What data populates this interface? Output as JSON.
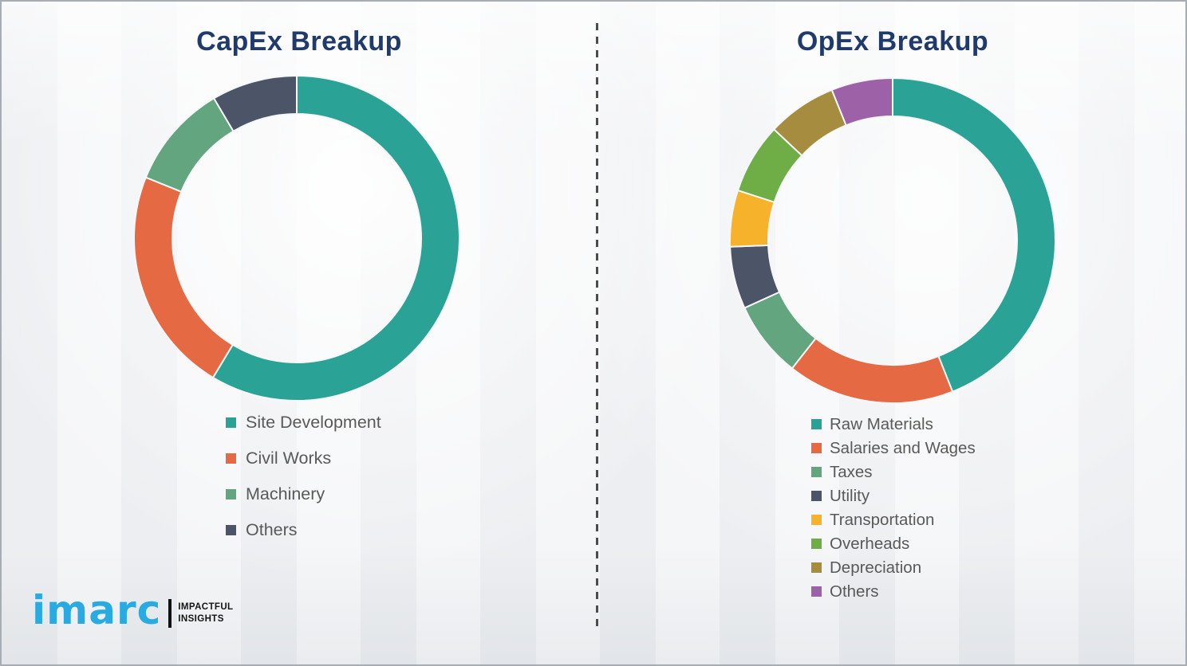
{
  "theme": {
    "title_color": "#1F3A6B",
    "legend_text_color": "#595959",
    "divider_color": "#4C4C4C",
    "segment_gap_color": "#F6F7F8",
    "logo_blue": "#29ABE2"
  },
  "chart_data": [
    {
      "id": "capex",
      "type": "pie",
      "donut": true,
      "title": "CapEx Breakup",
      "start_angle_deg": 0,
      "direction": "clockwise",
      "legend_position": "bottom-left",
      "categories": [
        "Site Development",
        "Civil Works",
        "Machinery",
        "Others"
      ],
      "values": [
        58.6,
        22.5,
        10.4,
        8.5
      ],
      "colors": [
        "#2AA396",
        "#E56A43",
        "#62A57F",
        "#4C5568"
      ]
    },
    {
      "id": "opex",
      "type": "pie",
      "donut": true,
      "title": "OpEx Breakup",
      "start_angle_deg": 0,
      "direction": "clockwise",
      "legend_position": "bottom-left",
      "categories": [
        "Raw Materials",
        "Salaries and Wages",
        "Taxes",
        "Utility",
        "Transportation",
        "Overheads",
        "Depreciation",
        "Others"
      ],
      "values": [
        44.0,
        16.6,
        7.6,
        6.2,
        5.6,
        7.0,
        6.9,
        6.1
      ],
      "colors": [
        "#2AA396",
        "#E56A43",
        "#62A57F",
        "#4C5568",
        "#F5B22A",
        "#6FAE47",
        "#A68C3E",
        "#9C61A6"
      ]
    }
  ],
  "logo": {
    "wordmark": "imarc",
    "tagline": "IMPACTFUL\nINSIGHTS"
  }
}
